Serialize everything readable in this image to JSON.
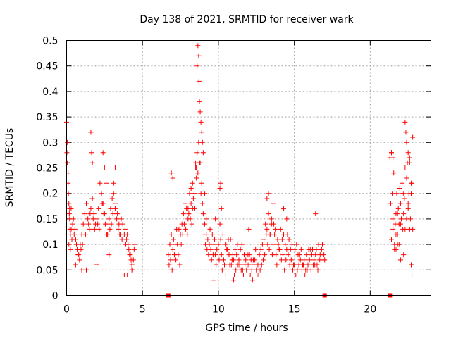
{
  "chart_data": {
    "type": "scatter",
    "title": "Day 138 of 2021, SRMTID for receiver wark",
    "xlabel": "GPS time / hours",
    "ylabel": "SRMTID / TECUs",
    "xlim": [
      0,
      24
    ],
    "ylim": [
      0,
      0.5
    ],
    "xticks": [
      0,
      5,
      10,
      15,
      20
    ],
    "xtick_labels": [
      "0",
      "5",
      "10",
      "15",
      "20"
    ],
    "yticks": [
      0,
      0.05,
      0.1,
      0.15,
      0.2,
      0.25,
      0.3,
      0.35,
      0.4,
      0.45,
      0.5
    ],
    "ytick_labels": [
      "0",
      "0.05",
      "0.1",
      "0.15",
      "0.2",
      "0.25",
      "0.3",
      "0.35",
      "0.4",
      "0.45",
      "0.5"
    ],
    "grid": true,
    "marker": "+",
    "color": "#ff0000",
    "baseline_markers": {
      "y": 0,
      "x": [
        6.7,
        17.0,
        21.3
      ],
      "marker": "square"
    },
    "series": [
      {
        "name": "SRMTID",
        "x": [
          0.0,
          0.05,
          0.1,
          0.15,
          0.2,
          0.25,
          0.3,
          0.4,
          0.5,
          0.6,
          0.7,
          0.8,
          0.9,
          1.0,
          1.1,
          1.2,
          1.3,
          1.4,
          1.5,
          1.6,
          1.7,
          1.8,
          1.9,
          2.0,
          2.1,
          2.2,
          2.3,
          2.4,
          2.5,
          2.6,
          2.7,
          2.8,
          2.9,
          3.0,
          3.1,
          3.2,
          3.3,
          3.4,
          3.5,
          3.6,
          3.7,
          3.8,
          3.9,
          4.0,
          4.1,
          4.2,
          4.3,
          4.4,
          4.5,
          0.02,
          0.08,
          0.12,
          0.18,
          0.22,
          0.35,
          0.45,
          0.55,
          0.65,
          0.75,
          0.85,
          0.95,
          1.05,
          1.25,
          1.45,
          1.55,
          1.75,
          1.85,
          2.05,
          2.15,
          2.35,
          2.45,
          2.55,
          2.65,
          2.85,
          2.95,
          3.05,
          3.25,
          3.35,
          3.45,
          3.55,
          3.65,
          3.85,
          3.95,
          4.05,
          4.15,
          4.25,
          4.35,
          4.45,
          0.05,
          0.1,
          0.2,
          0.3,
          1.6,
          1.65,
          1.7,
          2.4,
          2.5,
          2.6,
          3.2,
          3.1,
          0.15,
          0.25,
          0.6,
          1.0,
          1.3,
          2.0,
          2.8,
          3.8,
          4.0,
          4.3,
          6.7,
          6.8,
          6.9,
          7.0,
          7.1,
          7.2,
          7.3,
          7.4,
          7.5,
          7.6,
          7.7,
          7.8,
          7.9,
          8.0,
          8.1,
          8.2,
          8.3,
          8.4,
          8.5,
          8.6,
          8.7,
          8.8,
          8.9,
          9.0,
          9.1,
          9.2,
          9.3,
          9.4,
          9.5,
          9.6,
          9.7,
          9.8,
          9.9,
          6.75,
          6.85,
          6.95,
          7.05,
          7.15,
          7.25,
          7.35,
          7.45,
          7.55,
          7.65,
          7.75,
          7.85,
          7.95,
          8.05,
          8.15,
          8.25,
          8.35,
          8.45,
          8.55,
          8.65,
          8.75,
          8.85,
          8.95,
          9.05,
          9.15,
          9.25,
          9.35,
          9.45,
          9.55,
          9.65,
          9.75,
          9.85,
          8.6,
          8.65,
          8.7,
          8.72,
          8.75,
          8.8,
          8.85,
          8.9,
          8.95,
          9.0,
          8.5,
          8.55,
          8.4,
          8.3,
          6.9,
          7.0,
          9.1,
          9.2,
          8.0,
          8.2,
          10.0,
          10.2,
          10.4,
          10.6,
          10.8,
          11.0,
          11.2,
          11.4,
          11.6,
          11.8,
          12.0,
          12.2,
          12.4,
          12.6,
          12.8,
          13.0,
          13.2,
          13.4,
          13.6,
          13.8,
          14.0,
          14.2,
          14.4,
          14.6,
          14.8,
          15.0,
          15.2,
          15.4,
          15.6,
          15.8,
          16.0,
          16.2,
          16.4,
          16.6,
          16.8,
          17.0,
          10.1,
          10.3,
          10.5,
          10.7,
          10.9,
          11.1,
          11.3,
          11.5,
          11.7,
          11.9,
          12.1,
          12.3,
          12.5,
          12.7,
          12.9,
          13.1,
          13.3,
          13.5,
          13.7,
          13.9,
          14.1,
          14.3,
          14.5,
          14.7,
          14.9,
          15.1,
          15.3,
          15.5,
          15.7,
          15.9,
          16.1,
          16.3,
          16.5,
          16.7,
          16.9,
          10.05,
          10.25,
          10.45,
          10.65,
          10.85,
          11.05,
          11.25,
          11.45,
          11.65,
          11.85,
          12.05,
          12.25,
          12.45,
          12.65,
          12.85,
          13.05,
          13.25,
          13.45,
          13.65,
          13.85,
          14.05,
          14.25,
          14.45,
          14.65,
          14.85,
          15.05,
          15.25,
          15.45,
          15.65,
          15.85,
          16.05,
          16.25,
          16.45,
          16.65,
          16.85,
          10.15,
          10.35,
          10.55,
          10.75,
          10.95,
          11.15,
          11.35,
          11.55,
          11.75,
          11.95,
          12.15,
          12.35,
          12.55,
          12.75,
          12.95,
          13.15,
          13.35,
          13.55,
          13.75,
          13.95,
          14.15,
          14.35,
          14.55,
          14.75,
          14.95,
          15.15,
          15.35,
          15.55,
          15.75,
          15.95,
          16.15,
          16.35,
          16.55,
          16.75,
          16.95,
          10.1,
          10.15,
          9.7,
          13.3,
          13.2,
          13.6,
          14.5,
          14.3,
          16.4,
          13.5,
          12.0,
          11.0,
          9.8,
          10.2,
          21.3,
          21.4,
          21.5,
          21.6,
          21.7,
          21.8,
          21.9,
          22.0,
          22.1,
          22.2,
          22.3,
          22.4,
          22.5,
          22.6,
          22.7,
          22.8,
          21.35,
          21.45,
          21.55,
          21.65,
          21.75,
          21.85,
          21.95,
          22.05,
          22.15,
          22.25,
          22.35,
          22.45,
          22.55,
          22.65,
          22.75,
          21.4,
          21.5,
          21.6,
          21.7,
          21.8,
          21.9,
          22.0,
          22.1,
          22.2,
          22.3,
          22.4,
          22.5,
          22.6,
          22.7,
          22.8,
          22.3,
          22.4,
          22.5,
          22.6,
          21.4,
          21.5,
          22.7,
          22.75,
          22.2,
          22.0,
          21.7,
          21.8
        ],
        "y": [
          0.34,
          0.3,
          0.24,
          0.18,
          0.15,
          0.12,
          0.17,
          0.14,
          0.12,
          0.11,
          0.09,
          0.08,
          0.1,
          0.12,
          0.14,
          0.16,
          0.18,
          0.15,
          0.13,
          0.17,
          0.19,
          0.16,
          0.14,
          0.15,
          0.17,
          0.22,
          0.2,
          0.18,
          0.16,
          0.14,
          0.12,
          0.15,
          0.17,
          0.19,
          0.2,
          0.17,
          0.15,
          0.13,
          0.12,
          0.15,
          0.14,
          0.12,
          0.1,
          0.12,
          0.09,
          0.08,
          0.06,
          0.07,
          0.1,
          0.28,
          0.26,
          0.2,
          0.16,
          0.13,
          0.11,
          0.15,
          0.13,
          0.1,
          0.08,
          0.07,
          0.09,
          0.1,
          0.12,
          0.14,
          0.16,
          0.15,
          0.13,
          0.14,
          0.13,
          0.18,
          0.16,
          0.14,
          0.12,
          0.13,
          0.14,
          0.16,
          0.18,
          0.16,
          0.14,
          0.12,
          0.11,
          0.13,
          0.11,
          0.1,
          0.08,
          0.07,
          0.05,
          0.09,
          0.26,
          0.22,
          0.17,
          0.13,
          0.32,
          0.28,
          0.26,
          0.28,
          0.25,
          0.22,
          0.25,
          0.22,
          0.1,
          0.09,
          0.06,
          0.05,
          0.05,
          0.06,
          0.08,
          0.04,
          0.04,
          0.05,
          0.08,
          0.1,
          0.12,
          0.09,
          0.08,
          0.07,
          0.1,
          0.13,
          0.12,
          0.14,
          0.16,
          0.18,
          0.17,
          0.15,
          0.2,
          0.18,
          0.22,
          0.2,
          0.25,
          0.28,
          0.3,
          0.26,
          0.22,
          0.16,
          0.14,
          0.12,
          0.11,
          0.1,
          0.09,
          0.12,
          0.1,
          0.08,
          0.09,
          0.06,
          0.07,
          0.05,
          0.11,
          0.1,
          0.13,
          0.08,
          0.06,
          0.1,
          0.12,
          0.14,
          0.13,
          0.12,
          0.16,
          0.15,
          0.14,
          0.19,
          0.17,
          0.23,
          0.24,
          0.26,
          0.2,
          0.18,
          0.12,
          0.1,
          0.09,
          0.08,
          0.13,
          0.07,
          0.08,
          0.11,
          0.06,
          0.45,
          0.49,
          0.47,
          0.42,
          0.38,
          0.36,
          0.34,
          0.32,
          0.3,
          0.28,
          0.26,
          0.25,
          0.2,
          0.17,
          0.24,
          0.23,
          0.2,
          0.15,
          0.17,
          0.21,
          0.1,
          0.08,
          0.06,
          0.09,
          0.11,
          0.07,
          0.08,
          0.06,
          0.05,
          0.07,
          0.06,
          0.05,
          0.07,
          0.06,
          0.09,
          0.11,
          0.13,
          0.12,
          0.1,
          0.08,
          0.09,
          0.11,
          0.1,
          0.08,
          0.07,
          0.06,
          0.05,
          0.07,
          0.06,
          0.08,
          0.07,
          0.09,
          0.08,
          0.1,
          0.09,
          0.07,
          0.14,
          0.12,
          0.1,
          0.08,
          0.07,
          0.09,
          0.06,
          0.05,
          0.08,
          0.06,
          0.04,
          0.07,
          0.05,
          0.08,
          0.1,
          0.14,
          0.16,
          0.15,
          0.12,
          0.11,
          0.13,
          0.12,
          0.09,
          0.06,
          0.05,
          0.04,
          0.06,
          0.05,
          0.04,
          0.06,
          0.05,
          0.07,
          0.06,
          0.08,
          0.07,
          0.07,
          0.05,
          0.04,
          0.11,
          0.06,
          0.04,
          0.1,
          0.09,
          0.04,
          0.05,
          0.08,
          0.03,
          0.09,
          0.04,
          0.06,
          0.08,
          0.1,
          0.12,
          0.14,
          0.06,
          0.09,
          0.08,
          0.07,
          0.11,
          0.1,
          0.09,
          0.08,
          0.09,
          0.07,
          0.05,
          0.09,
          0.06,
          0.09,
          0.07,
          0.1,
          0.11,
          0.07,
          0.09,
          0.06,
          0.08,
          0.05,
          0.07,
          0.1,
          0.06,
          0.08,
          0.07,
          0.06,
          0.04,
          0.05,
          0.07,
          0.12,
          0.09,
          0.08,
          0.13,
          0.1,
          0.07,
          0.05,
          0.12,
          0.09,
          0.06,
          0.1,
          0.08,
          0.06,
          0.05,
          0.09,
          0.08,
          0.06,
          0.05,
          0.07,
          0.08,
          0.21,
          0.22,
          0.03,
          0.2,
          0.19,
          0.18,
          0.15,
          0.17,
          0.16,
          0.14,
          0.13,
          0.03,
          0.15,
          0.17,
          0.27,
          0.28,
          0.15,
          0.1,
          0.12,
          0.16,
          0.14,
          0.18,
          0.22,
          0.2,
          0.25,
          0.23,
          0.17,
          0.13,
          0.2,
          0.31,
          0.18,
          0.2,
          0.24,
          0.14,
          0.2,
          0.17,
          0.21,
          0.15,
          0.13,
          0.19,
          0.32,
          0.26,
          0.2,
          0.15,
          0.22,
          0.11,
          0.13,
          0.09,
          0.16,
          0.12,
          0.1,
          0.14,
          0.2,
          0.16,
          0.13,
          0.15,
          0.18,
          0.26,
          0.22,
          0.13,
          0.34,
          0.3,
          0.28,
          0.27,
          0.28,
          0.27,
          0.06,
          0.04,
          0.08,
          0.07,
          0.09,
          0.1
        ]
      }
    ]
  }
}
